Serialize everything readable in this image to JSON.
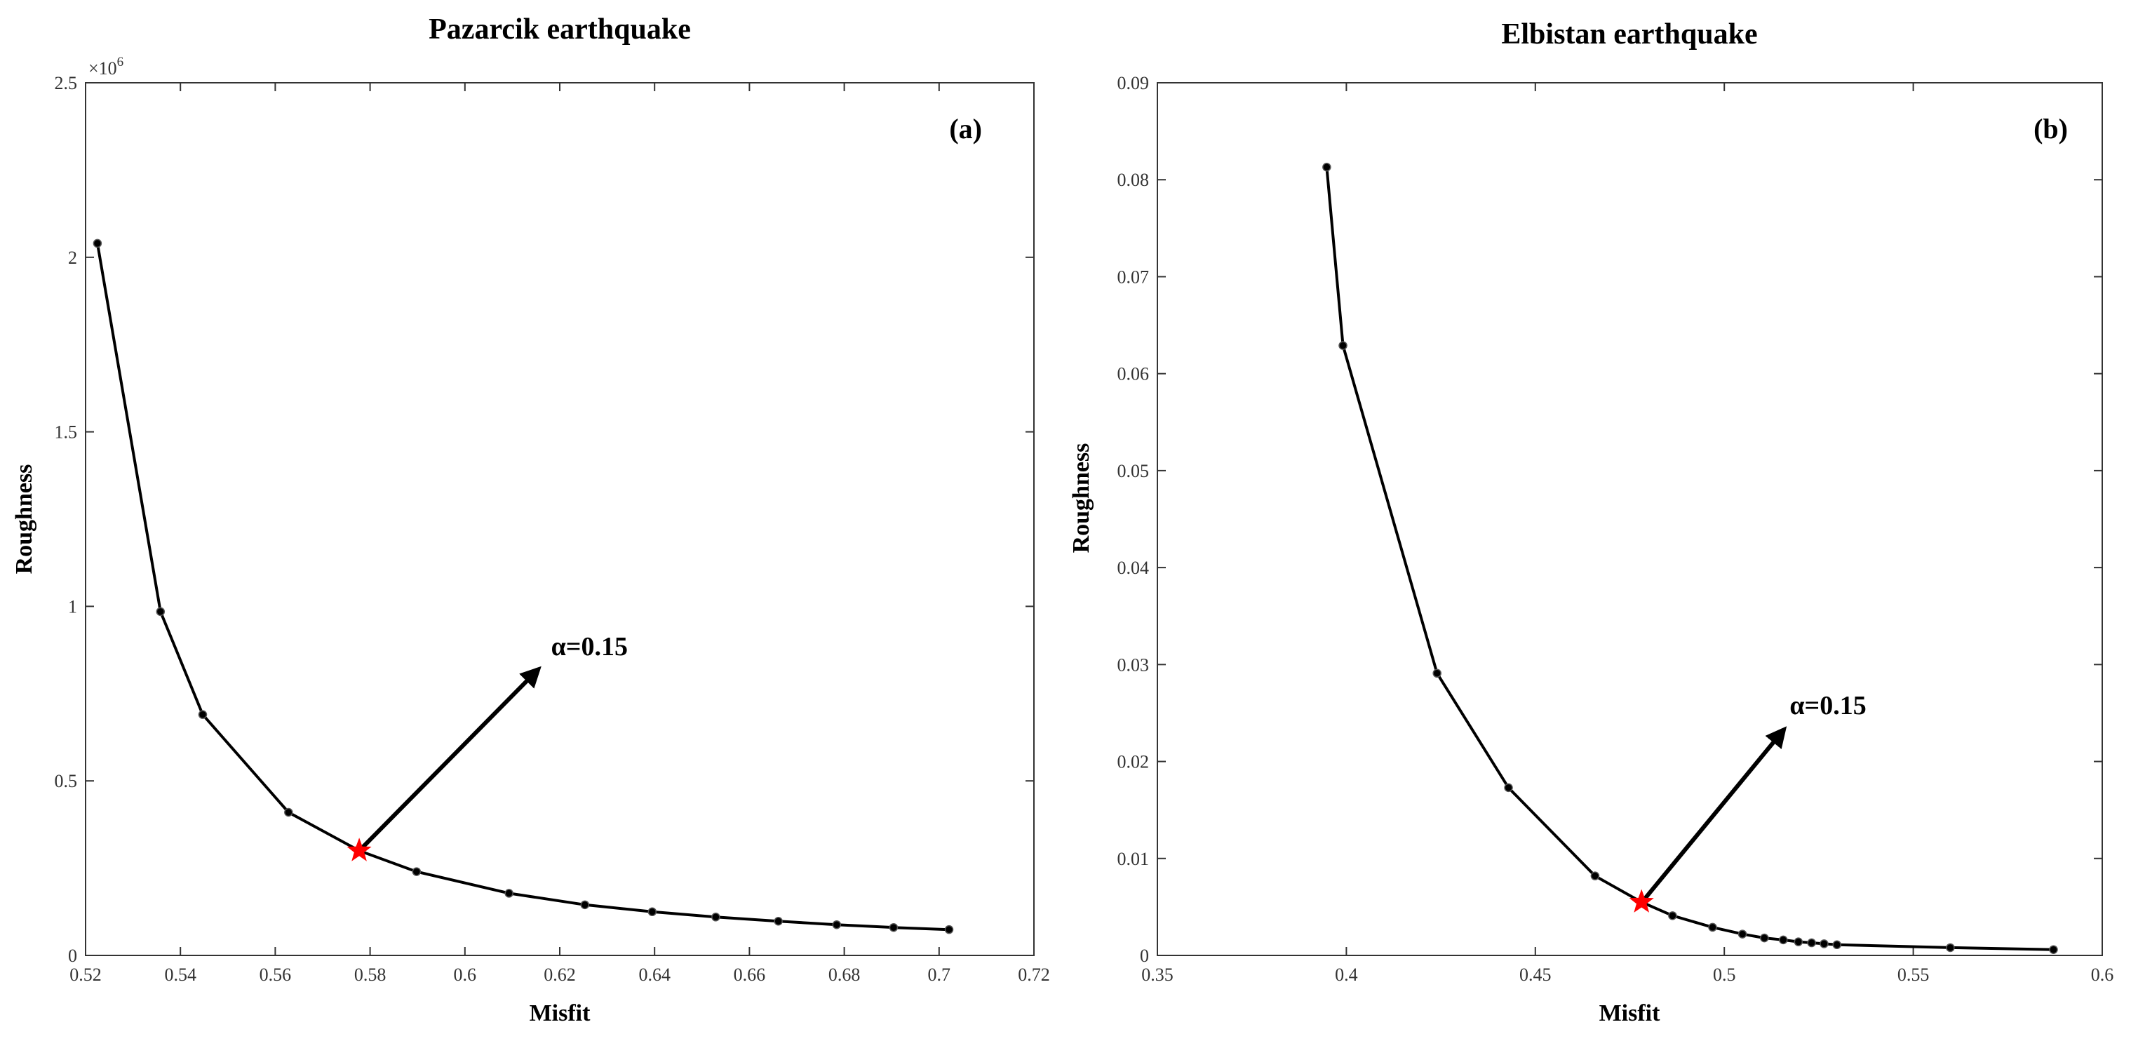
{
  "chart_data": [
    {
      "type": "line",
      "title": "Pazarcik earthquake",
      "panel_label": "(a)",
      "xlabel": "Misfit",
      "ylabel": "Roughness",
      "y_exponent": "×10",
      "y_exponent_power": "6",
      "xlim": [
        0.52,
        0.72
      ],
      "ylim": [
        0,
        2500000
      ],
      "xticks": [
        0.52,
        0.54,
        0.56,
        0.58,
        0.6,
        0.62,
        0.64,
        0.66,
        0.68,
        0.7,
        0.72
      ],
      "xtick_labels": [
        "0.52",
        "0.54",
        "0.56",
        "0.58",
        "0.6",
        "0.62",
        "0.64",
        "0.66",
        "0.68",
        "0.7",
        "0.72"
      ],
      "yticks": [
        0,
        500000,
        1000000,
        1500000,
        2000000,
        2500000
      ],
      "ytick_labels": [
        "0",
        "0.5",
        "1",
        "1.5",
        "2",
        "2.5"
      ],
      "grid": false,
      "x": [
        0.5225,
        0.5358,
        0.5447,
        0.5628,
        0.5777,
        0.5898,
        0.6093,
        0.6253,
        0.6395,
        0.6529,
        0.6661,
        0.6784,
        0.6904,
        0.7021
      ],
      "y": [
        2040000,
        985000,
        690000,
        410000,
        300000,
        240000,
        178000,
        145000,
        125000,
        110000,
        98000,
        88000,
        80000,
        74000
      ],
      "highlight": {
        "x": 0.5777,
        "y": 300000,
        "color": "#ff0000"
      },
      "annotation": {
        "text": "α=0.15",
        "arrow_to": [
          0.6155,
          820000
        ]
      },
      "line_color": "#000000"
    },
    {
      "type": "line",
      "title": "Elbistan earthquake",
      "panel_label": "(b)",
      "xlabel": "Misfit",
      "ylabel": "Roughness",
      "xlim": [
        0.35,
        0.6
      ],
      "ylim": [
        0,
        0.09
      ],
      "xticks": [
        0.35,
        0.4,
        0.45,
        0.5,
        0.55,
        0.6
      ],
      "xtick_labels": [
        "0.35",
        "0.4",
        "0.45",
        "0.5",
        "0.55",
        "0.6"
      ],
      "yticks": [
        0,
        0.01,
        0.02,
        0.03,
        0.04,
        0.05,
        0.06,
        0.07,
        0.08,
        0.09
      ],
      "ytick_labels": [
        "0",
        "0.01",
        "0.02",
        "0.03",
        "0.04",
        "0.05",
        "0.06",
        "0.07",
        "0.08",
        "0.09"
      ],
      "grid": false,
      "x": [
        0.3948,
        0.3991,
        0.424,
        0.4429,
        0.4658,
        0.4781,
        0.4863,
        0.4969,
        0.5048,
        0.5106,
        0.5156,
        0.5196,
        0.5231,
        0.5264,
        0.5298,
        0.5598,
        0.5871
      ],
      "y": [
        0.0813,
        0.0629,
        0.0291,
        0.0173,
        0.0082,
        0.0055,
        0.0041,
        0.0029,
        0.0022,
        0.0018,
        0.0016,
        0.0014,
        0.0013,
        0.0012,
        0.0011,
        0.0008,
        0.0006
      ],
      "highlight": {
        "x": 0.4781,
        "y": 0.0055,
        "color": "#ff0000"
      },
      "annotation": {
        "text": "α=0.15",
        "arrow_to": [
          0.5158,
          0.0233
        ]
      },
      "line_color": "#000000"
    }
  ]
}
